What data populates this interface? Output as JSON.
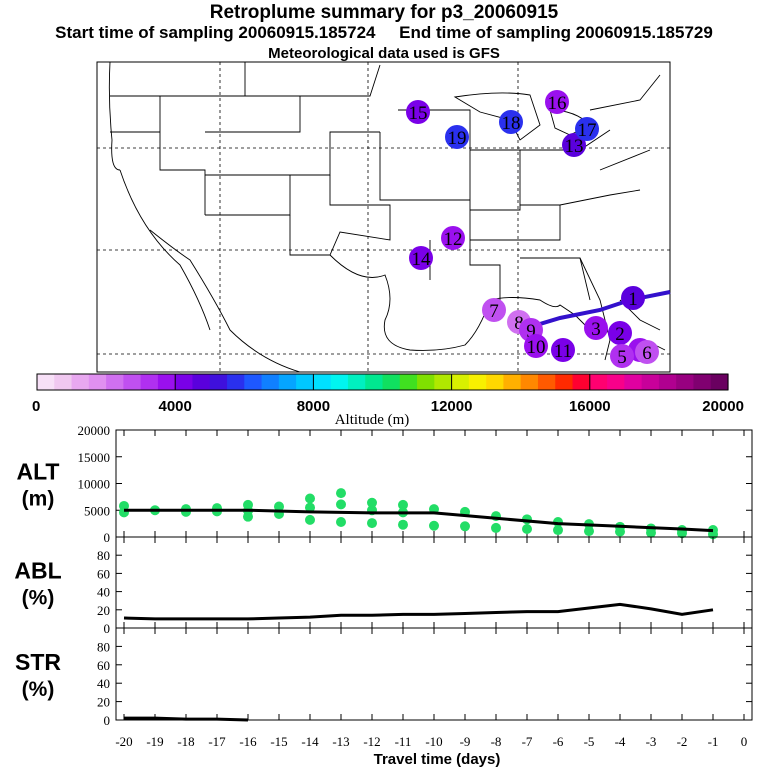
{
  "header": {
    "title": "Retroplume summary for p3_20060915",
    "sampling": "Start time of sampling 20060915.185724     End time of sampling 20060915.185729",
    "met": "Meteorological data used is GFS"
  },
  "colors": {
    "bg": "#ffffff",
    "ink": "#000000",
    "alt_marker": "#22dd66",
    "track": "#3311cc"
  },
  "colorbar": {
    "label": "Altitude (m)",
    "ticks": [
      "0",
      "4000",
      "8000",
      "12000",
      "16000",
      "20000"
    ],
    "tick_values": [
      0,
      4000,
      8000,
      12000,
      16000,
      20000
    ],
    "range": [
      0,
      20000
    ],
    "colors": [
      "#f7e0f7",
      "#f0c8f0",
      "#e8a8f0",
      "#e090f0",
      "#d070f0",
      "#c050f0",
      "#b030f0",
      "#9a10ee",
      "#7a00e8",
      "#5a00dd",
      "#3f10dd",
      "#2a30ee",
      "#1e58ff",
      "#1080ff",
      "#05a5ff",
      "#00c8ff",
      "#00e0ff",
      "#00f5f0",
      "#00f0c0",
      "#00e890",
      "#10e060",
      "#40e020",
      "#80e000",
      "#b0e800",
      "#d8f000",
      "#f8f000",
      "#ffd800",
      "#ffb000",
      "#ff8800",
      "#ff5a00",
      "#ff2a00",
      "#ff0030",
      "#ff0070",
      "#f8008a",
      "#e000a0",
      "#c8009a",
      "#b00090",
      "#980080",
      "#800070",
      "#6a0060"
    ]
  },
  "map": {
    "grid_lines": "dashed",
    "clusters": [
      {
        "label": "1",
        "altitude": 4500
      },
      {
        "label": "2",
        "altitude": 4200
      },
      {
        "label": "3",
        "altitude": 3800
      },
      {
        "label": "4",
        "altitude": 3500
      },
      {
        "label": "5",
        "altitude": 3000
      },
      {
        "label": "6",
        "altitude": 2500
      },
      {
        "label": "7",
        "altitude": 2800
      },
      {
        "label": "8",
        "altitude": 2400
      },
      {
        "label": "9",
        "altitude": 3200
      },
      {
        "label": "10",
        "altitude": 3500
      },
      {
        "label": "11",
        "altitude": 4300
      },
      {
        "label": "12",
        "altitude": 3900
      },
      {
        "label": "13",
        "altitude": 4600
      },
      {
        "label": "14",
        "altitude": 4200
      },
      {
        "label": "15",
        "altitude": 4000
      },
      {
        "label": "16",
        "altitude": 3600
      },
      {
        "label": "17",
        "altitude": 5500
      },
      {
        "label": "18",
        "altitude": 5600
      },
      {
        "label": "19",
        "altitude": 5700
      }
    ]
  },
  "chart_data": [
    {
      "type": "scatter",
      "panel": "ALT",
      "ylabel": "ALT",
      "yunit": "(m)",
      "ylim": [
        0,
        20000
      ],
      "yticks": [
        "20000",
        "15000",
        "10000",
        "5000",
        "0"
      ],
      "ytick_values": [
        20000,
        15000,
        10000,
        5000,
        0
      ],
      "xlim": [
        -20,
        0
      ],
      "series": [
        {
          "name": "mean altitude",
          "x": [
            -20,
            -18,
            -16,
            -14,
            -12,
            -10,
            -8,
            -6,
            -4,
            -2,
            -1
          ],
          "y": [
            5000,
            5000,
            5000,
            4700,
            4500,
            4500,
            3500,
            2500,
            2000,
            1500,
            1200
          ]
        },
        {
          "name": "cluster altitudes",
          "x": [
            -20,
            -20,
            -19,
            -18,
            -18,
            -17,
            -17,
            -16,
            -16,
            -16,
            -15,
            -15,
            -14,
            -14,
            -14,
            -13,
            -13,
            -13,
            -12,
            -12,
            -12,
            -11,
            -11,
            -11,
            -10,
            -10,
            -9,
            -9,
            -8,
            -8,
            -7,
            -7,
            -6,
            -6,
            -5,
            -5,
            -4,
            -4,
            -3,
            -3,
            -2,
            -2,
            -1,
            -1
          ],
          "y": [
            5800,
            4600,
            5000,
            5200,
            4700,
            5400,
            4800,
            6000,
            4900,
            3800,
            5700,
            4300,
            7200,
            5500,
            3200,
            8200,
            6100,
            2800,
            6400,
            5000,
            2600,
            6000,
            4600,
            2300,
            5200,
            2100,
            4700,
            2000,
            3900,
            1700,
            3300,
            1500,
            2800,
            1300,
            2400,
            1100,
            1900,
            1000,
            1600,
            800,
            1300,
            700,
            1300,
            500
          ]
        }
      ]
    },
    {
      "type": "line",
      "panel": "ABL",
      "ylabel": "ABL",
      "yunit": "(%)",
      "ylim": [
        0,
        100
      ],
      "yticks": [
        "80",
        "60",
        "40",
        "20",
        "0"
      ],
      "ytick_values": [
        80,
        60,
        40,
        20,
        0
      ],
      "xlim": [
        -20,
        0
      ],
      "x": [
        -20,
        -19,
        -18,
        -17,
        -16,
        -15,
        -14,
        -13,
        -12,
        -11,
        -10,
        -9,
        -8,
        -7,
        -6,
        -5,
        -4,
        -3,
        -2,
        -1
      ],
      "y": [
        11,
        10,
        10,
        10,
        10,
        11,
        12,
        14,
        14,
        15,
        15,
        16,
        17,
        18,
        18,
        22,
        26,
        21,
        15,
        20
      ]
    },
    {
      "type": "line",
      "panel": "STR",
      "ylabel": "STR",
      "yunit": "(%)",
      "ylim": [
        0,
        100
      ],
      "yticks": [
        "80",
        "60",
        "40",
        "20",
        "0"
      ],
      "ytick_values": [
        80,
        60,
        40,
        20,
        0
      ],
      "xlim": [
        -20,
        0
      ],
      "x": [
        -20,
        -19,
        -18,
        -17,
        -16
      ],
      "y": [
        2,
        2,
        1,
        1,
        0
      ]
    }
  ],
  "xaxis": {
    "label": "Travel time (days)",
    "ticks": [
      "-20",
      "-19",
      "-18",
      "-17",
      "-16",
      "-15",
      "-14",
      "-13",
      "-12",
      "-11",
      "-10",
      "-9",
      "-8",
      "-7",
      "-6",
      "-5",
      "-4",
      "-3",
      "-2",
      "-1",
      "0"
    ],
    "tick_values": [
      -20,
      -19,
      -18,
      -17,
      -16,
      -15,
      -14,
      -13,
      -12,
      -11,
      -10,
      -9,
      -8,
      -7,
      -6,
      -5,
      -4,
      -3,
      -2,
      -1,
      0
    ]
  }
}
